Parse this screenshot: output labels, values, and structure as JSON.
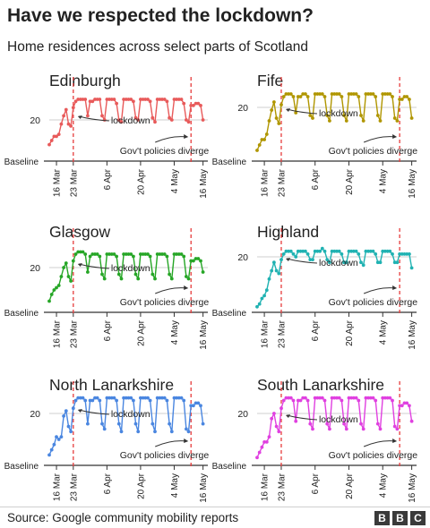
{
  "title": "Have we respected the lockdown?",
  "subtitle": "Home residences across select parts of Scotland",
  "source": "Source: Google community mobility reports",
  "brand": [
    "B",
    "B",
    "C"
  ],
  "chart_data": [
    {
      "type": "line",
      "title": "Edinburgh",
      "color": "#e85a5a",
      "x_labels": [
        "16 Mar",
        "23 Mar",
        "6 Apr",
        "20 Apr",
        "4 May",
        "16 May"
      ],
      "y_labels": [
        "20",
        "Baseline"
      ],
      "y_ticks": [
        20,
        0
      ],
      "ylim": [
        0,
        33
      ],
      "x_range": [
        "2020-03-13",
        "2020-05-18"
      ],
      "x": [
        "2020-03-13",
        "2020-03-14",
        "2020-03-15",
        "2020-03-16",
        "2020-03-17",
        "2020-03-18",
        "2020-03-19",
        "2020-03-20",
        "2020-03-21",
        "2020-03-22",
        "2020-03-23",
        "2020-03-24",
        "2020-03-25",
        "2020-03-26",
        "2020-03-27",
        "2020-03-28",
        "2020-03-29",
        "2020-03-30",
        "2020-03-31",
        "2020-04-01",
        "2020-04-02",
        "2020-04-03",
        "2020-04-04",
        "2020-04-05",
        "2020-04-06",
        "2020-04-07",
        "2020-04-08",
        "2020-04-09",
        "2020-04-10",
        "2020-04-11",
        "2020-04-12",
        "2020-04-13",
        "2020-04-14",
        "2020-04-15",
        "2020-04-16",
        "2020-04-17",
        "2020-04-18",
        "2020-04-19",
        "2020-04-20",
        "2020-04-21",
        "2020-04-22",
        "2020-04-23",
        "2020-04-24",
        "2020-04-25",
        "2020-04-26",
        "2020-04-27",
        "2020-04-28",
        "2020-04-29",
        "2020-04-30",
        "2020-05-01",
        "2020-05-02",
        "2020-05-03",
        "2020-05-04",
        "2020-05-05",
        "2020-05-06",
        "2020-05-07",
        "2020-05-08",
        "2020-05-09",
        "2020-05-10",
        "2020-05-11",
        "2020-05-12",
        "2020-05-13",
        "2020-05-14",
        "2020-05-15",
        "2020-05-16"
      ],
      "values": [
        8,
        10,
        12,
        12,
        13,
        18,
        22,
        25,
        18,
        17,
        26,
        29,
        30,
        30,
        30,
        30,
        22,
        29,
        29,
        30,
        30,
        30,
        22,
        20,
        30,
        30,
        30,
        30,
        28,
        20,
        19,
        30,
        30,
        30,
        30,
        29,
        21,
        20,
        30,
        30,
        30,
        30,
        29,
        21,
        19,
        30,
        30,
        30,
        30,
        29,
        21,
        20,
        30,
        30,
        30,
        30,
        28,
        20,
        19,
        27,
        27,
        28,
        28,
        27,
        20
      ],
      "annotations": [
        {
          "text": "lockdown",
          "date": "2020-03-23",
          "line_color": "#e63c3c"
        },
        {
          "text": "Gov't policies diverge",
          "date": "2020-05-11",
          "line_color": "#e63c3c"
        }
      ]
    },
    {
      "type": "line",
      "title": "Fife",
      "color": "#b09600",
      "x_labels": [
        "16 Mar",
        "23 Mar",
        "6 Apr",
        "20 Apr",
        "4 May",
        "16 May"
      ],
      "y_labels": [
        "20",
        "Baseline"
      ],
      "y_ticks": [
        20,
        0
      ],
      "ylim": [
        0,
        33
      ],
      "x_range": [
        "2020-03-13",
        "2020-05-18"
      ],
      "x": [
        "2020-03-13",
        "2020-03-14",
        "2020-03-15",
        "2020-03-16",
        "2020-03-17",
        "2020-03-18",
        "2020-03-19",
        "2020-03-20",
        "2020-03-21",
        "2020-03-22",
        "2020-03-23",
        "2020-03-24",
        "2020-03-25",
        "2020-03-26",
        "2020-03-27",
        "2020-03-28",
        "2020-03-29",
        "2020-03-30",
        "2020-03-31",
        "2020-04-01",
        "2020-04-02",
        "2020-04-03",
        "2020-04-04",
        "2020-04-05",
        "2020-04-06",
        "2020-04-07",
        "2020-04-08",
        "2020-04-09",
        "2020-04-10",
        "2020-04-11",
        "2020-04-12",
        "2020-04-13",
        "2020-04-14",
        "2020-04-15",
        "2020-04-16",
        "2020-04-17",
        "2020-04-18",
        "2020-04-19",
        "2020-04-20",
        "2020-04-21",
        "2020-04-22",
        "2020-04-23",
        "2020-04-24",
        "2020-04-25",
        "2020-04-26",
        "2020-04-27",
        "2020-04-28",
        "2020-04-29",
        "2020-04-30",
        "2020-05-01",
        "2020-05-02",
        "2020-05-03",
        "2020-05-04",
        "2020-05-05",
        "2020-05-06",
        "2020-05-07",
        "2020-05-08",
        "2020-05-09",
        "2020-05-10",
        "2020-05-11",
        "2020-05-12",
        "2020-05-13",
        "2020-05-14",
        "2020-05-15",
        "2020-05-16"
      ],
      "values": [
        4,
        6,
        8,
        8,
        10,
        15,
        19,
        22,
        16,
        14,
        21,
        24,
        25,
        25,
        25,
        24,
        18,
        24,
        24,
        25,
        25,
        24,
        17,
        16,
        25,
        25,
        25,
        25,
        24,
        17,
        15,
        25,
        25,
        25,
        25,
        24,
        17,
        15,
        25,
        25,
        25,
        25,
        24,
        17,
        15,
        25,
        25,
        25,
        25,
        24,
        17,
        15,
        25,
        25,
        25,
        25,
        24,
        16,
        15,
        23,
        23,
        24,
        24,
        23,
        16
      ],
      "annotations": [
        {
          "text": "lockdown",
          "date": "2020-03-23",
          "line_color": "#e63c3c"
        },
        {
          "text": "Gov't policies diverge",
          "date": "2020-05-11",
          "line_color": "#e63c3c"
        }
      ]
    },
    {
      "type": "line",
      "title": "Glasgow",
      "color": "#26a626",
      "x_labels": [
        "16 Mar",
        "23 Mar",
        "6 Apr",
        "20 Apr",
        "4 May",
        "16 May"
      ],
      "y_labels": [
        "20",
        "Baseline"
      ],
      "y_ticks": [
        20,
        0
      ],
      "ylim": [
        0,
        33
      ],
      "x_range": [
        "2020-03-13",
        "2020-05-18"
      ],
      "x": [
        "2020-03-13",
        "2020-03-14",
        "2020-03-15",
        "2020-03-16",
        "2020-03-17",
        "2020-03-18",
        "2020-03-19",
        "2020-03-20",
        "2020-03-21",
        "2020-03-22",
        "2020-03-23",
        "2020-03-24",
        "2020-03-25",
        "2020-03-26",
        "2020-03-27",
        "2020-03-28",
        "2020-03-29",
        "2020-03-30",
        "2020-03-31",
        "2020-04-01",
        "2020-04-02",
        "2020-04-03",
        "2020-04-04",
        "2020-04-05",
        "2020-04-06",
        "2020-04-07",
        "2020-04-08",
        "2020-04-09",
        "2020-04-10",
        "2020-04-11",
        "2020-04-12",
        "2020-04-13",
        "2020-04-14",
        "2020-04-15",
        "2020-04-16",
        "2020-04-17",
        "2020-04-18",
        "2020-04-19",
        "2020-04-20",
        "2020-04-21",
        "2020-04-22",
        "2020-04-23",
        "2020-04-24",
        "2020-04-25",
        "2020-04-26",
        "2020-04-27",
        "2020-04-28",
        "2020-04-29",
        "2020-04-30",
        "2020-05-01",
        "2020-05-02",
        "2020-05-03",
        "2020-05-04",
        "2020-05-05",
        "2020-05-06",
        "2020-05-07",
        "2020-05-08",
        "2020-05-09",
        "2020-05-10",
        "2020-05-11",
        "2020-05-12",
        "2020-05-13",
        "2020-05-14",
        "2020-05-15",
        "2020-05-16"
      ],
      "values": [
        5,
        8,
        10,
        11,
        12,
        16,
        20,
        22,
        16,
        14,
        23,
        26,
        27,
        27,
        27,
        26,
        18,
        25,
        26,
        26,
        26,
        25,
        17,
        15,
        26,
        26,
        26,
        26,
        25,
        17,
        15,
        26,
        26,
        26,
        26,
        25,
        17,
        15,
        26,
        26,
        26,
        26,
        25,
        17,
        15,
        26,
        26,
        26,
        26,
        25,
        17,
        15,
        26,
        26,
        26,
        26,
        25,
        16,
        15,
        23,
        23,
        24,
        24,
        23,
        18
      ],
      "annotations": [
        {
          "text": "lockdown",
          "date": "2020-03-23",
          "line_color": "#e63c3c"
        },
        {
          "text": "Gov't policies diverge",
          "date": "2020-05-11",
          "line_color": "#e63c3c"
        }
      ]
    },
    {
      "type": "line",
      "title": "Highland",
      "color": "#20b2b2",
      "x_labels": [
        "16 Mar",
        "23 Mar",
        "6 Apr",
        "20 Apr",
        "4 May",
        "16 May"
      ],
      "y_labels": [
        "20",
        "Baseline"
      ],
      "y_ticks": [
        20,
        0
      ],
      "ylim": [
        0,
        33
      ],
      "x_range": [
        "2020-03-13",
        "2020-05-18"
      ],
      "x": [
        "2020-03-13",
        "2020-03-14",
        "2020-03-15",
        "2020-03-16",
        "2020-03-17",
        "2020-03-18",
        "2020-03-19",
        "2020-03-20",
        "2020-03-21",
        "2020-03-22",
        "2020-03-23",
        "2020-03-24",
        "2020-03-25",
        "2020-03-26",
        "2020-03-27",
        "2020-03-28",
        "2020-03-29",
        "2020-03-30",
        "2020-03-31",
        "2020-04-01",
        "2020-04-02",
        "2020-04-03",
        "2020-04-04",
        "2020-04-05",
        "2020-04-06",
        "2020-04-07",
        "2020-04-08",
        "2020-04-09",
        "2020-04-10",
        "2020-04-11",
        "2020-04-12",
        "2020-04-13",
        "2020-04-14",
        "2020-04-15",
        "2020-04-16",
        "2020-04-17",
        "2020-04-18",
        "2020-04-19",
        "2020-04-20",
        "2020-04-21",
        "2020-04-22",
        "2020-04-23",
        "2020-04-24",
        "2020-04-25",
        "2020-04-26",
        "2020-04-27",
        "2020-04-28",
        "2020-04-29",
        "2020-04-30",
        "2020-05-01",
        "2020-05-02",
        "2020-05-03",
        "2020-05-04",
        "2020-05-05",
        "2020-05-06",
        "2020-05-07",
        "2020-05-08",
        "2020-05-09",
        "2020-05-10",
        "2020-05-11",
        "2020-05-12",
        "2020-05-13",
        "2020-05-14",
        "2020-05-15",
        "2020-05-16"
      ],
      "values": [
        2,
        3,
        5,
        6,
        8,
        12,
        15,
        18,
        15,
        14,
        19,
        21,
        22,
        22,
        22,
        21,
        20,
        22,
        22,
        22,
        22,
        21,
        19,
        19,
        22,
        22,
        22,
        23,
        22,
        19,
        18,
        22,
        22,
        22,
        22,
        21,
        18,
        18,
        22,
        22,
        22,
        22,
        21,
        18,
        17,
        22,
        22,
        22,
        22,
        21,
        18,
        18,
        22,
        22,
        22,
        22,
        21,
        18,
        18,
        21,
        21,
        21,
        21,
        21,
        16
      ],
      "annotations": [
        {
          "text": "lockdown",
          "date": "2020-03-23",
          "line_color": "#e63c3c"
        },
        {
          "text": "Gov't policies diverge",
          "date": "2020-05-11",
          "line_color": "#e63c3c"
        }
      ]
    },
    {
      "type": "line",
      "title": "North Lanarkshire",
      "color": "#4a86e0",
      "x_labels": [
        "16 Mar",
        "23 Mar",
        "6 Apr",
        "20 Apr",
        "4 May",
        "16 May"
      ],
      "y_labels": [
        "20",
        "Baseline"
      ],
      "y_ticks": [
        20,
        0
      ],
      "ylim": [
        0,
        33
      ],
      "x_range": [
        "2020-03-13",
        "2020-05-18"
      ],
      "x": [
        "2020-03-13",
        "2020-03-14",
        "2020-03-15",
        "2020-03-16",
        "2020-03-17",
        "2020-03-18",
        "2020-03-19",
        "2020-03-20",
        "2020-03-21",
        "2020-03-22",
        "2020-03-23",
        "2020-03-24",
        "2020-03-25",
        "2020-03-26",
        "2020-03-27",
        "2020-03-28",
        "2020-03-29",
        "2020-03-30",
        "2020-03-31",
        "2020-04-01",
        "2020-04-02",
        "2020-04-03",
        "2020-04-04",
        "2020-04-05",
        "2020-04-06",
        "2020-04-07",
        "2020-04-08",
        "2020-04-09",
        "2020-04-10",
        "2020-04-11",
        "2020-04-12",
        "2020-04-13",
        "2020-04-14",
        "2020-04-15",
        "2020-04-16",
        "2020-04-17",
        "2020-04-18",
        "2020-04-19",
        "2020-04-20",
        "2020-04-21",
        "2020-04-22",
        "2020-04-23",
        "2020-04-24",
        "2020-04-25",
        "2020-04-26",
        "2020-04-27",
        "2020-04-28",
        "2020-04-29",
        "2020-04-30",
        "2020-05-01",
        "2020-05-02",
        "2020-05-03",
        "2020-05-04",
        "2020-05-05",
        "2020-05-06",
        "2020-05-07",
        "2020-05-08",
        "2020-05-09",
        "2020-05-10",
        "2020-05-11",
        "2020-05-12",
        "2020-05-13",
        "2020-05-14",
        "2020-05-15",
        "2020-05-16"
      ],
      "values": [
        4,
        6,
        8,
        11,
        10,
        11,
        19,
        21,
        15,
        13,
        22,
        25,
        26,
        26,
        26,
        25,
        16,
        25,
        25,
        26,
        26,
        25,
        16,
        14,
        26,
        26,
        26,
        26,
        25,
        16,
        13,
        26,
        26,
        26,
        26,
        25,
        16,
        13,
        26,
        26,
        26,
        26,
        25,
        16,
        13,
        26,
        26,
        26,
        26,
        25,
        16,
        13,
        26,
        26,
        26,
        26,
        25,
        14,
        13,
        23,
        23,
        24,
        24,
        23,
        16
      ],
      "annotations": [
        {
          "text": "lockdown",
          "date": "2020-03-23",
          "line_color": "#e63c3c"
        },
        {
          "text": "Gov't policies diverge",
          "date": "2020-05-11",
          "line_color": "#e63c3c"
        }
      ]
    },
    {
      "type": "line",
      "title": "South Lanarkshire",
      "color": "#e040e0",
      "x_labels": [
        "16 Mar",
        "23 Mar",
        "6 Apr",
        "20 Apr",
        "4 May",
        "16 May"
      ],
      "y_labels": [
        "20",
        "Baseline"
      ],
      "y_ticks": [
        20,
        0
      ],
      "ylim": [
        0,
        33
      ],
      "x_range": [
        "2020-03-13",
        "2020-05-18"
      ],
      "x": [
        "2020-03-13",
        "2020-03-14",
        "2020-03-15",
        "2020-03-16",
        "2020-03-17",
        "2020-03-18",
        "2020-03-19",
        "2020-03-20",
        "2020-03-21",
        "2020-03-22",
        "2020-03-23",
        "2020-03-24",
        "2020-03-25",
        "2020-03-26",
        "2020-03-27",
        "2020-03-28",
        "2020-03-29",
        "2020-03-30",
        "2020-03-31",
        "2020-04-01",
        "2020-04-02",
        "2020-04-03",
        "2020-04-04",
        "2020-04-05",
        "2020-04-06",
        "2020-04-07",
        "2020-04-08",
        "2020-04-09",
        "2020-04-10",
        "2020-04-11",
        "2020-04-12",
        "2020-04-13",
        "2020-04-14",
        "2020-04-15",
        "2020-04-16",
        "2020-04-17",
        "2020-04-18",
        "2020-04-19",
        "2020-04-20",
        "2020-04-21",
        "2020-04-22",
        "2020-04-23",
        "2020-04-24",
        "2020-04-25",
        "2020-04-26",
        "2020-04-27",
        "2020-04-28",
        "2020-04-29",
        "2020-04-30",
        "2020-05-01",
        "2020-05-02",
        "2020-05-03",
        "2020-05-04",
        "2020-05-05",
        "2020-05-06",
        "2020-05-07",
        "2020-05-08",
        "2020-05-09",
        "2020-05-10",
        "2020-05-11",
        "2020-05-12",
        "2020-05-13",
        "2020-05-14",
        "2020-05-15",
        "2020-05-16"
      ],
      "values": [
        3,
        5,
        7,
        9,
        9,
        11,
        18,
        20,
        15,
        13,
        22,
        25,
        26,
        26,
        26,
        25,
        17,
        25,
        25,
        26,
        26,
        25,
        16,
        14,
        26,
        26,
        26,
        26,
        25,
        16,
        14,
        26,
        26,
        26,
        26,
        25,
        16,
        14,
        26,
        26,
        26,
        26,
        25,
        16,
        14,
        26,
        26,
        26,
        26,
        25,
        16,
        14,
        26,
        26,
        26,
        26,
        25,
        15,
        14,
        23,
        23,
        24,
        24,
        23,
        17
      ],
      "annotations": [
        {
          "text": "lockdown",
          "date": "2020-03-23",
          "line_color": "#e63c3c"
        },
        {
          "text": "Gov't policies diverge",
          "date": "2020-05-11",
          "line_color": "#e63c3c"
        }
      ]
    }
  ]
}
